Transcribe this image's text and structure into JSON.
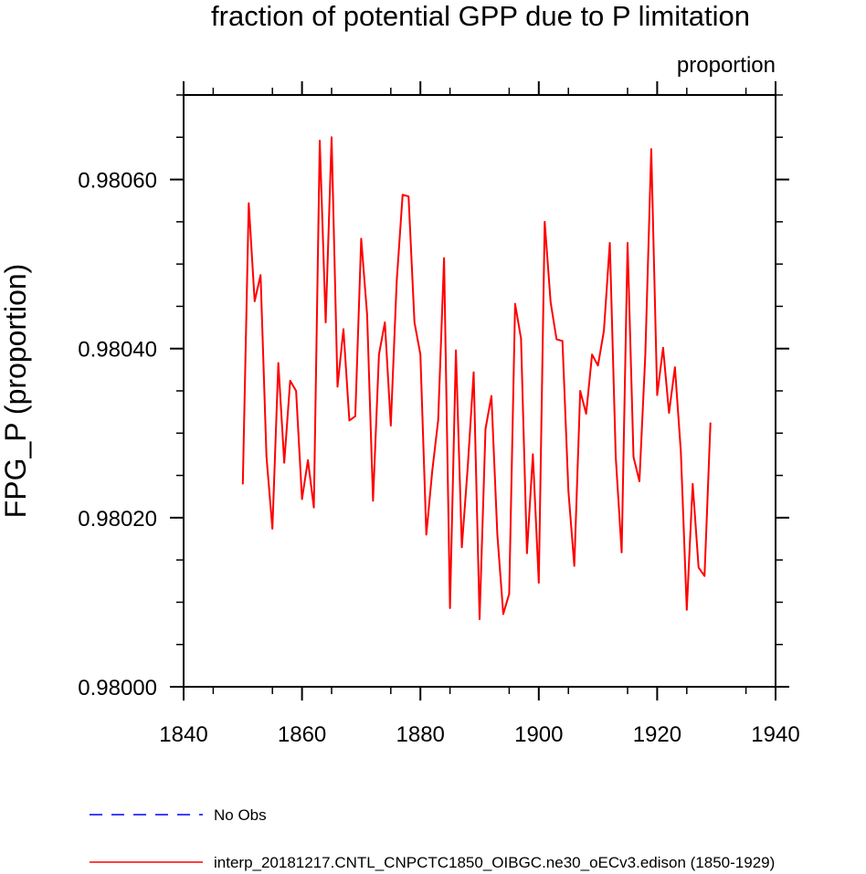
{
  "chart_data": {
    "type": "line",
    "title": "fraction of potential GPP due to P limitation",
    "units_label": "proportion",
    "ylabel": "FPG_P  (proportion)",
    "xlabel": "",
    "xlim": [
      1840,
      1940
    ],
    "ylim": [
      0.98,
      0.9807
    ],
    "x_ticks": [
      1840,
      1860,
      1880,
      1900,
      1920,
      1940
    ],
    "x_tick_labels": [
      "1840",
      "1860",
      "1880",
      "1900",
      "1920",
      "1940"
    ],
    "y_ticks": [
      0.98,
      0.9802,
      0.9804,
      0.9806
    ],
    "y_tick_labels": [
      "0.98000",
      "0.98020",
      "0.98040",
      "0.98060"
    ],
    "grid": false,
    "legend_position": "bottom",
    "legend": [
      {
        "name": "No Obs",
        "color": "#0000ff",
        "style": "dashed"
      },
      {
        "name": "interp_20181217.CNTL_CNPCTC1850_OIBGC.ne30_oECv3.edison (1850-1929)",
        "color": "#ff0000",
        "style": "solid"
      }
    ],
    "series": [
      {
        "name": "interp_20181217.CNTL_CNPCTC1850_OIBGC.ne30_oECv3.edison (1850-1929)",
        "color": "#ff0000",
        "x": [
          1850,
          1851,
          1852,
          1853,
          1854,
          1855,
          1856,
          1857,
          1858,
          1859,
          1860,
          1861,
          1862,
          1863,
          1864,
          1865,
          1866,
          1867,
          1868,
          1869,
          1870,
          1871,
          1872,
          1873,
          1874,
          1875,
          1876,
          1877,
          1878,
          1879,
          1880,
          1881,
          1882,
          1883,
          1884,
          1885,
          1886,
          1887,
          1888,
          1889,
          1890,
          1891,
          1892,
          1893,
          1894,
          1895,
          1896,
          1897,
          1898,
          1899,
          1900,
          1901,
          1902,
          1903,
          1904,
          1905,
          1906,
          1907,
          1908,
          1909,
          1910,
          1911,
          1912,
          1913,
          1914,
          1915,
          1916,
          1917,
          1918,
          1919,
          1920,
          1921,
          1922,
          1923,
          1924,
          1925,
          1926,
          1927,
          1928,
          1929
        ],
        "values": [
          0.98024,
          0.980572,
          0.980456,
          0.980487,
          0.980272,
          0.980187,
          0.980383,
          0.980265,
          0.980362,
          0.98035,
          0.980222,
          0.980268,
          0.980212,
          0.980646,
          0.980431,
          0.98065,
          0.980355,
          0.980423,
          0.980315,
          0.98032,
          0.98053,
          0.98044,
          0.98022,
          0.980393,
          0.980431,
          0.980309,
          0.98048,
          0.980582,
          0.98058,
          0.980431,
          0.980393,
          0.98018,
          0.980255,
          0.980315,
          0.980507,
          0.980093,
          0.980398,
          0.980165,
          0.98026,
          0.980372,
          0.98008,
          0.980305,
          0.980344,
          0.98018,
          0.980086,
          0.98011,
          0.980453,
          0.980412,
          0.980158,
          0.980275,
          0.980123,
          0.98055,
          0.980455,
          0.980411,
          0.980409,
          0.980232,
          0.980143,
          0.98035,
          0.980323,
          0.980393,
          0.98038,
          0.980421,
          0.980525,
          0.980272,
          0.980159,
          0.980525,
          0.980272,
          0.980243,
          0.980393,
          0.980636,
          0.980345,
          0.980401,
          0.980324,
          0.980378,
          0.980278,
          0.980091,
          0.98024,
          0.980141,
          0.980131,
          0.980312
        ]
      }
    ]
  }
}
